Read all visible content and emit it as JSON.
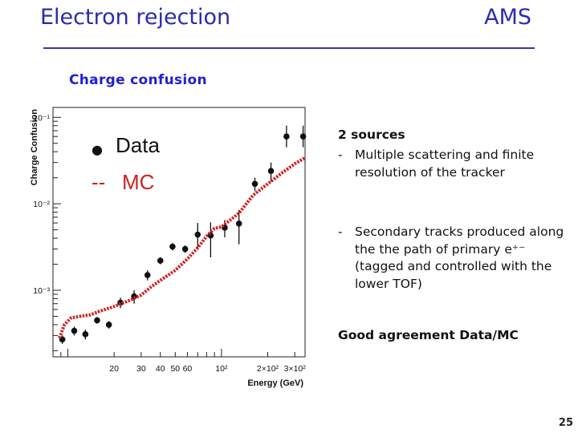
{
  "slide": {
    "title_left": "Electron rejection",
    "title_right": "AMS",
    "subtitle": "Charge confusion",
    "page_number": "25"
  },
  "colors": {
    "title": "#2b2bb0",
    "subtitle": "#1f1fd6",
    "mc_line": "#cc2222",
    "data_marker": "#111111"
  },
  "notes": {
    "sources_title": "2 sources",
    "bullets": [
      "Multiple scattering and finite resolution of the tracker",
      "Secondary tracks produced along the the path of primary e⁺⁻ (tagged and controlled with the lower TOF)"
    ],
    "bullet_marker": "-",
    "conclusion": "Good agreement Data/MC"
  },
  "chart_data": {
    "type": "scatter",
    "xlabel": "Energy (GeV)",
    "ylabel": "Charge Confusion",
    "xscale": "log",
    "yscale": "log",
    "xlim": [
      8,
      350
    ],
    "ylim": [
      0.00017,
      0.13
    ],
    "x_ticks": [
      {
        "v": 20,
        "label": "20"
      },
      {
        "v": 30,
        "label": "30"
      },
      {
        "v": 40,
        "label": "40"
      },
      {
        "v": 50,
        "label": "50"
      },
      {
        "v": 60,
        "label": "60"
      },
      {
        "v": 100,
        "label": "10²"
      },
      {
        "v": 200,
        "label": "2×10²"
      },
      {
        "v": 300,
        "label": "3×10²"
      }
    ],
    "y_ticks": [
      {
        "v": 0.001,
        "label": "10⁻³"
      },
      {
        "v": 0.01,
        "label": "10⁻²"
      },
      {
        "v": 0.1,
        "label": "10⁻¹"
      }
    ],
    "legend": [
      {
        "marker": "●",
        "name": "Data",
        "color": "#111111"
      },
      {
        "marker": "--",
        "name": "MC",
        "color": "#cc2222"
      }
    ],
    "legend_position": "top-left",
    "series": [
      {
        "name": "Data",
        "kind": "points",
        "x": [
          9.2,
          11,
          13,
          15.5,
          18.5,
          22,
          27,
          33,
          40,
          48,
          58,
          70,
          85,
          105,
          130,
          165,
          210,
          265,
          340
        ],
        "y": [
          0.00027,
          0.00034,
          0.00031,
          0.00045,
          0.0004,
          0.00072,
          0.00085,
          0.0015,
          0.0022,
          0.0032,
          0.003,
          0.0044,
          0.0043,
          0.0053,
          0.0059,
          0.017,
          0.024,
          0.06,
          0.06
        ],
        "err_low": [
          3e-05,
          4e-05,
          4e-05,
          4e-05,
          4e-05,
          0.0001,
          0.00015,
          0.0002,
          0.0002,
          0.0003,
          0.0003,
          0.0014,
          0.0019,
          0.0012,
          0.0025,
          0.003,
          0.006,
          0.015,
          0.015
        ],
        "err_high": [
          3e-05,
          4e-05,
          4e-05,
          4e-05,
          4e-05,
          0.0001,
          0.00015,
          0.0002,
          0.0002,
          0.0003,
          0.0003,
          0.0016,
          0.0018,
          0.0012,
          0.0026,
          0.003,
          0.006,
          0.02,
          0.02
        ]
      },
      {
        "name": "MC",
        "kind": "line",
        "x": [
          8.8,
          9.5,
          10.5,
          12,
          14,
          16,
          20,
          25,
          30,
          35,
          40,
          50,
          60,
          70,
          80,
          90,
          100,
          130,
          160,
          200,
          250,
          300,
          350
        ],
        "y": [
          0.00028,
          0.0004,
          0.00048,
          0.0005,
          0.00052,
          0.00057,
          0.00065,
          0.00076,
          0.00088,
          0.0011,
          0.0013,
          0.0017,
          0.0023,
          0.0031,
          0.0042,
          0.0052,
          0.0054,
          0.0078,
          0.0125,
          0.017,
          0.023,
          0.029,
          0.034
        ]
      }
    ]
  }
}
